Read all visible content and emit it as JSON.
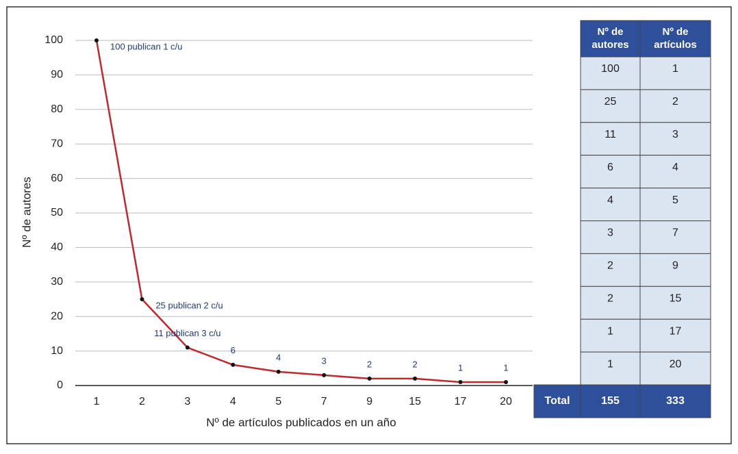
{
  "chart_data": {
    "type": "line",
    "x_label": "Nº de artículos publicados en un año",
    "y_label": "Nº de autores",
    "categories": [
      "1",
      "2",
      "3",
      "4",
      "5",
      "7",
      "9",
      "15",
      "17",
      "20"
    ],
    "values": [
      100,
      25,
      11,
      6,
      4,
      3,
      2,
      2,
      1,
      1
    ],
    "value_labels": [
      "100 publican 1 c/u",
      "25 publican 2 c/u",
      "11 publican 3 c/u",
      "6",
      "4",
      "3",
      "2",
      "2",
      "1",
      "1"
    ],
    "color": "#c0282d",
    "ylim": [
      0,
      100
    ],
    "yticks": [
      0,
      10,
      20,
      30,
      40,
      50,
      60,
      70,
      80,
      90,
      100
    ],
    "grid": true
  },
  "table": {
    "header": [
      "Nº de autores",
      "Nº de artículos"
    ],
    "rows": [
      [
        "100",
        "1"
      ],
      [
        "25",
        "2"
      ],
      [
        "11",
        "3"
      ],
      [
        "6",
        "4"
      ],
      [
        "4",
        "5"
      ],
      [
        "3",
        "7"
      ],
      [
        "2",
        "9"
      ],
      [
        "2",
        "15"
      ],
      [
        "1",
        "17"
      ],
      [
        "1",
        "20"
      ]
    ],
    "total": [
      "Total",
      "155",
      "333"
    ]
  }
}
